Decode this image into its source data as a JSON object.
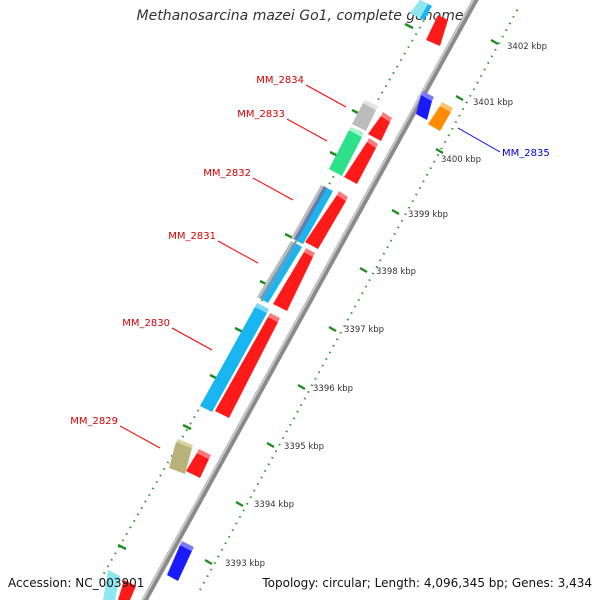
{
  "title": "Methanosarcina mazei Go1, complete genome",
  "footer": {
    "accession": "Accession: NC_003901",
    "topology": "Topology: circular; Length: 4,096,345 bp; Genes: 3,434"
  },
  "colors": {
    "backbone": "#9a9a9a",
    "tick_green": "#1e8c1e",
    "forward_label": "#d40000",
    "reverse_label": "#0000cc",
    "cds_red": "#ff1a1a",
    "cds_blue": "#1a1aff",
    "cds_orange": "#ff8c00",
    "rna_cyan": "#19b5f0",
    "rna_mint": "#2de08a",
    "rna_grey": "#bcbcbc",
    "rna_olive": "#b8b27a"
  },
  "kbp_ticks": [
    "3393 kbp",
    "3394 kbp",
    "3395 kbp",
    "3396 kbp",
    "3397 kbp",
    "3398 kbp",
    "3399 kbp",
    "3400 kbp",
    "3401 kbp",
    "3402 kbp"
  ],
  "genes": [
    {
      "label": "MM_2834",
      "strand": "forward"
    },
    {
      "label": "MM_2833",
      "strand": "forward"
    },
    {
      "label": "MM_2832",
      "strand": "forward"
    },
    {
      "label": "MM_2831",
      "strand": "forward"
    },
    {
      "label": "MM_2830",
      "strand": "forward"
    },
    {
      "label": "MM_2829",
      "strand": "forward"
    },
    {
      "label": "MM_2835",
      "strand": "reverse"
    }
  ]
}
